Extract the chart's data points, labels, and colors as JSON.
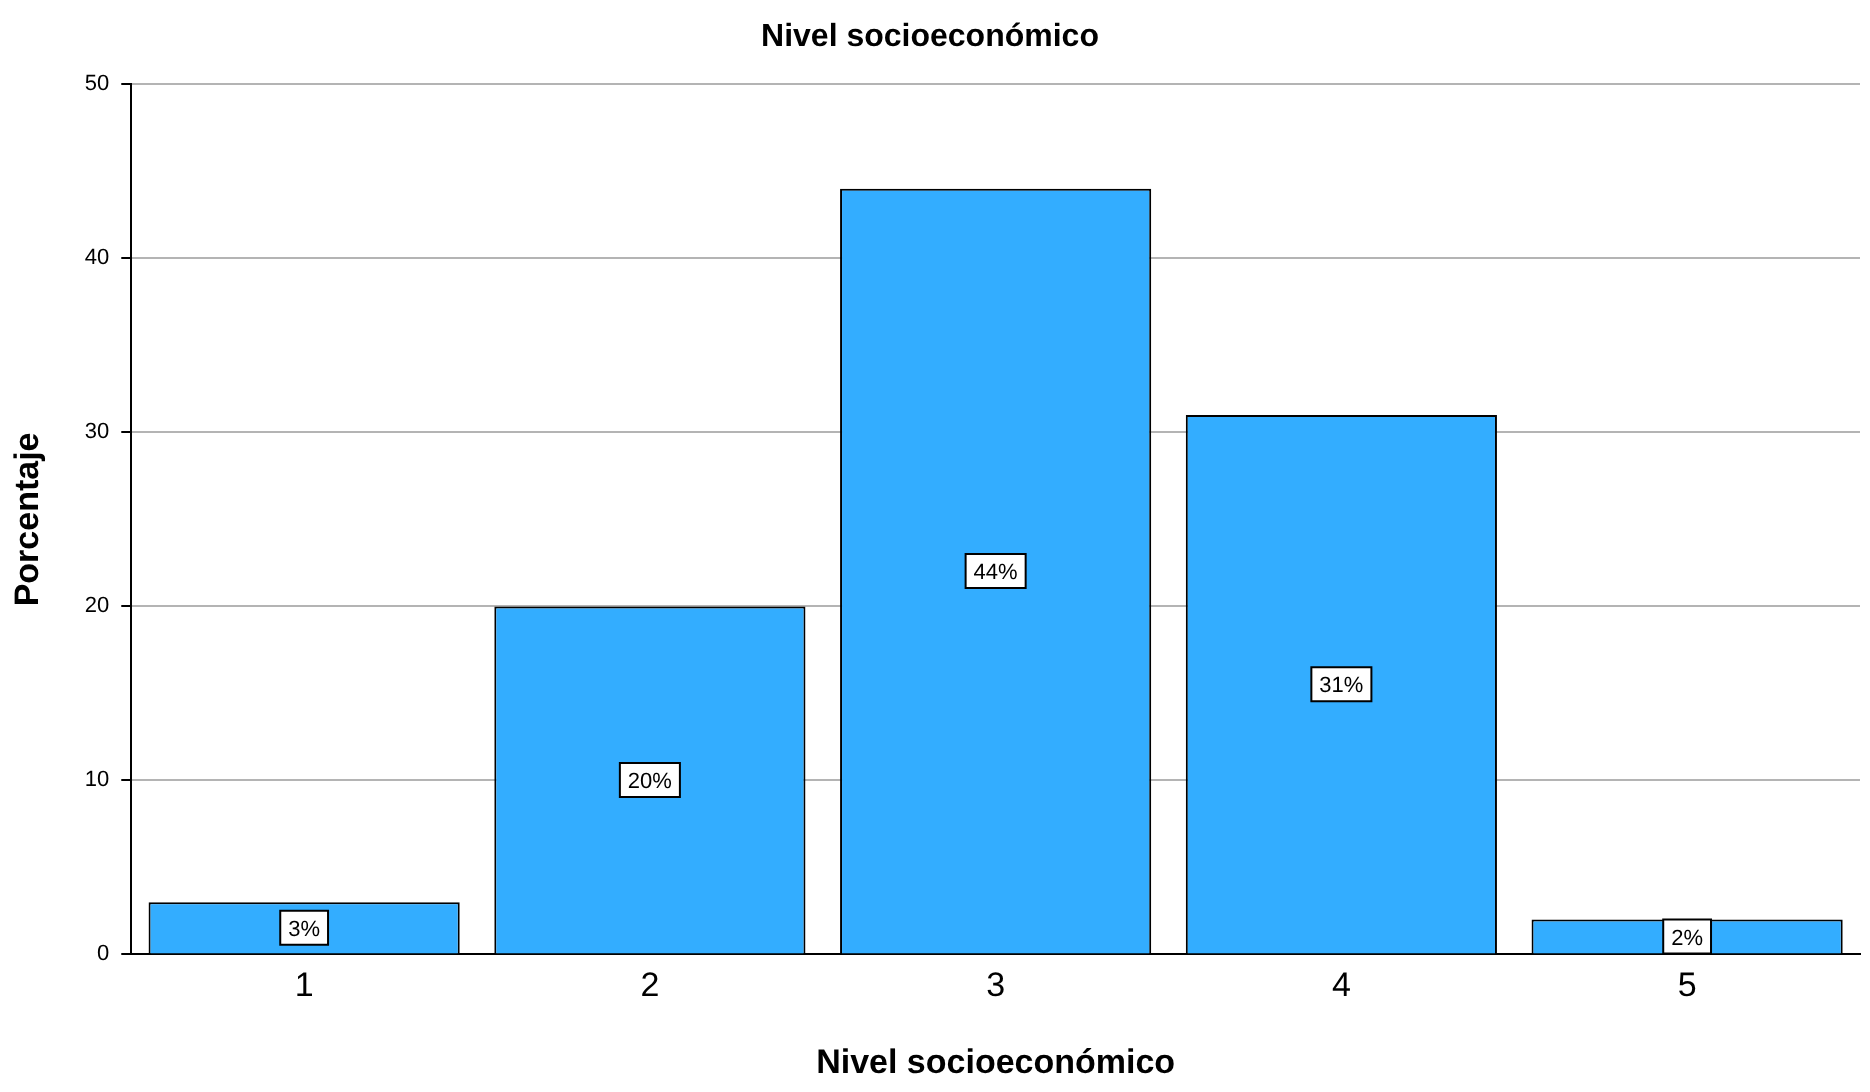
{
  "chart_data": {
    "type": "bar",
    "title": "Nivel socioeconómico",
    "xlabel": "Nivel socioeconómico",
    "ylabel": "Porcentaje",
    "categories": [
      "1",
      "2",
      "3",
      "4",
      "5"
    ],
    "values": [
      3,
      20,
      44,
      31,
      2
    ],
    "value_labels": [
      "3%",
      "20%",
      "44%",
      "31%",
      "2%"
    ],
    "color": "#33adff",
    "ylim": [
      0,
      50
    ],
    "yticks": [
      0,
      10,
      20,
      30,
      40,
      50
    ],
    "grid": "y",
    "legend": false
  }
}
